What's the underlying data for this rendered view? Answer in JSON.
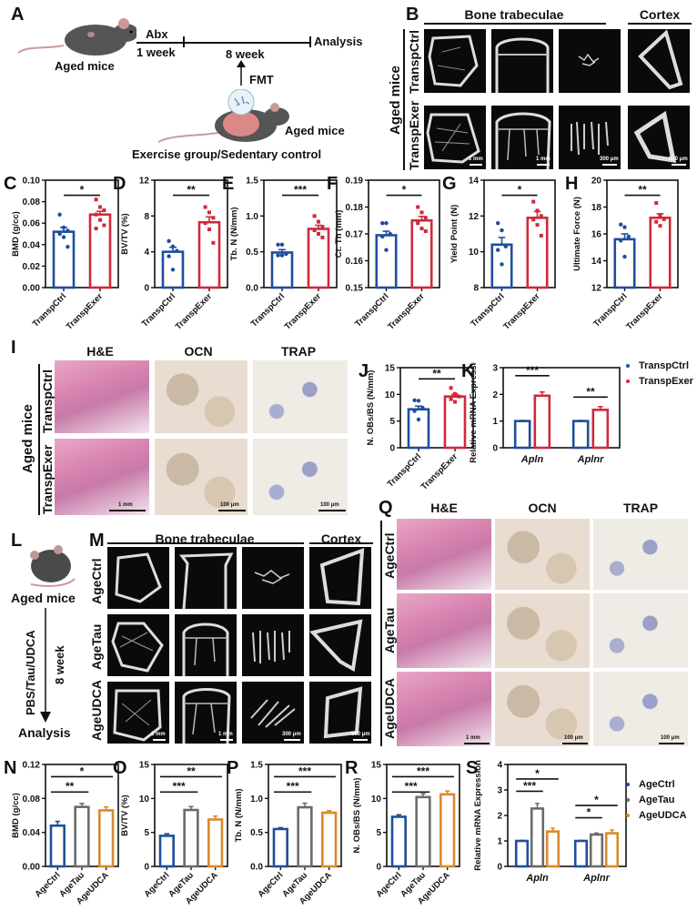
{
  "panels": {
    "A": {
      "label": "A",
      "mouse1_label": "Aged mice",
      "step1_top": "Abx",
      "step1_bottom": "1 week",
      "step2_bottom": "8 week",
      "end_label": "Analysis",
      "arrow_label": "FMT",
      "mouse2_label": "Aged mice",
      "donor_label": "Exercise group/Sedentary control"
    },
    "B": {
      "label": "B",
      "header_trab": "Bone trabeculae",
      "header_cortex": "Cortex",
      "group_label": "Aged mice",
      "rows": [
        "TranspCtrl",
        "TranspExer"
      ],
      "scale_bars": [
        "1 mm",
        "1 mm",
        "300 μm",
        "500 μm"
      ]
    },
    "I": {
      "label": "I",
      "columns": [
        "H&E",
        "OCN",
        "TRAP"
      ],
      "group_label": "Aged mice",
      "rows": [
        "TranspCtrl",
        "TranspExer"
      ],
      "scale_bars": [
        "1 mm",
        "100 μm",
        "100 μm"
      ]
    },
    "L": {
      "label": "L",
      "top_label": "Aged mice",
      "arrow_left": "PBS/Tau/UDCA",
      "arrow_right": "8 week",
      "bottom_label": "Analysis"
    },
    "M": {
      "label": "M",
      "header_trab": "Bone trabeculae",
      "header_cortex": "Cortex",
      "rows": [
        "AgeCtrl",
        "AgeTau",
        "AgeUDCA"
      ],
      "scale_bars": [
        "1 mm",
        "1 mm",
        "300 μm",
        "500 μm"
      ]
    },
    "Q": {
      "label": "Q",
      "columns": [
        "H&E",
        "OCN",
        "TRAP"
      ],
      "rows": [
        "AgeCtrl",
        "AgeTau",
        "AgeUDCA"
      ],
      "scale_bars": [
        "1 mm",
        "100 μm",
        "100 μm"
      ]
    }
  },
  "legends": {
    "K": [
      {
        "label": "TranspCtrl",
        "color": "#1f4e9c"
      },
      {
        "label": "TranspExer",
        "color": "#d0293a"
      }
    ],
    "S": [
      {
        "label": "AgeCtrl",
        "color": "#1f4e9c"
      },
      {
        "label": "AgeTau",
        "color": "#666666"
      },
      {
        "label": "AgeUDCA",
        "color": "#d98a2b"
      }
    ]
  },
  "colors": {
    "ctrl": "#1f4e9c",
    "exer": "#d0293a",
    "tau": "#6b6b6b",
    "udca": "#d98a2b"
  },
  "chart_data": [
    {
      "panel": "C",
      "type": "bar",
      "categories": [
        "TranspCtrl",
        "TranspExer"
      ],
      "values": [
        0.052,
        0.068
      ],
      "sem": [
        0.004,
        0.003
      ],
      "ylabel": "BMD (g/cc)",
      "ylim": [
        0,
        0.1
      ],
      "yticks": [
        "0.00",
        "0.02",
        "0.04",
        "0.06",
        "0.08",
        "0.10"
      ],
      "points": [
        [
          0.068,
          0.056,
          0.053,
          0.05,
          0.047,
          0.038
        ],
        [
          0.082,
          0.075,
          0.072,
          0.068,
          0.063,
          0.058,
          0.055
        ]
      ],
      "significance": [
        {
          "pair": [
            0,
            1
          ],
          "label": "*"
        }
      ]
    },
    {
      "panel": "D",
      "type": "bar",
      "categories": [
        "TranspCtrl",
        "TranspExer"
      ],
      "values": [
        4.0,
        7.3
      ],
      "sem": [
        0.5,
        0.6
      ],
      "ylabel": "BV/TV (%)",
      "ylim": [
        0,
        12
      ],
      "yticks": [
        "0",
        "4",
        "8",
        "12"
      ],
      "points": [
        [
          5.2,
          4.6,
          4.1,
          3.5,
          2.0
        ],
        [
          9.0,
          8.4,
          7.8,
          7.2,
          6.5,
          5.0
        ]
      ],
      "significance": [
        {
          "pair": [
            0,
            1
          ],
          "label": "**"
        }
      ]
    },
    {
      "panel": "E",
      "type": "bar",
      "categories": [
        "TranspCtrl",
        "TranspExer"
      ],
      "values": [
        0.49,
        0.82
      ],
      "sem": [
        0.04,
        0.05
      ],
      "ylabel": "Tb. N (N/mm)",
      "ylim": [
        0,
        1.5
      ],
      "yticks": [
        "0.0",
        "0.5",
        "1.0",
        "1.5"
      ],
      "points": [
        [
          0.6,
          0.6,
          0.47,
          0.45,
          0.45
        ],
        [
          1.0,
          0.92,
          0.85,
          0.8,
          0.75,
          0.7
        ]
      ],
      "significance": [
        {
          "pair": [
            0,
            1
          ],
          "label": "***"
        }
      ]
    },
    {
      "panel": "F",
      "type": "bar",
      "categories": [
        "TranspCtrl",
        "TranspExer"
      ],
      "values": [
        0.1695,
        0.175
      ],
      "sem": [
        0.0015,
        0.0015
      ],
      "ylabel": "Ct. Th (mm)",
      "ylim": [
        0.15,
        0.19
      ],
      "yticks": [
        "0.15",
        "0.16",
        "0.17",
        "0.18",
        "0.19"
      ],
      "points": [
        [
          0.174,
          0.174,
          0.17,
          0.169,
          0.164
        ],
        [
          0.18,
          0.178,
          0.176,
          0.174,
          0.172,
          0.171
        ]
      ],
      "significance": [
        {
          "pair": [
            0,
            1
          ],
          "label": "*"
        }
      ]
    },
    {
      "panel": "G",
      "type": "bar",
      "categories": [
        "TranspCtrl",
        "TranspExer"
      ],
      "values": [
        10.4,
        11.9
      ],
      "sem": [
        0.4,
        0.35
      ],
      "ylabel": "Yield Point (N)",
      "ylim": [
        8,
        14
      ],
      "yticks": [
        "8",
        "10",
        "12",
        "14"
      ],
      "points": [
        [
          11.6,
          11.2,
          10.3,
          10.1,
          9.3
        ],
        [
          12.8,
          12.3,
          12.0,
          11.8,
          11.5,
          10.9
        ]
      ],
      "significance": [
        {
          "pair": [
            0,
            1
          ],
          "label": "*"
        }
      ]
    },
    {
      "panel": "H",
      "type": "bar",
      "categories": [
        "TranspCtrl",
        "TranspExer"
      ],
      "values": [
        15.6,
        17.2
      ],
      "sem": [
        0.4,
        0.3
      ],
      "ylabel": "Ultimate Force (N)",
      "ylim": [
        12,
        20
      ],
      "yticks": [
        "12",
        "14",
        "16",
        "18",
        "20"
      ],
      "points": [
        [
          16.7,
          16.5,
          15.8,
          15.5,
          14.3
        ],
        [
          18.3,
          17.4,
          17.1,
          16.9,
          16.6
        ]
      ],
      "significance": [
        {
          "pair": [
            0,
            1
          ],
          "label": "**"
        }
      ]
    },
    {
      "panel": "J",
      "type": "bar",
      "categories": [
        "TranspCtrl",
        "TranspExer"
      ],
      "values": [
        7.2,
        9.6
      ],
      "sem": [
        0.6,
        0.4
      ],
      "ylabel": "N. OBs/BS (N/mm)",
      "ylim": [
        0,
        15
      ],
      "yticks": [
        "0",
        "5",
        "10",
        "15"
      ],
      "points": [
        [
          8.9,
          8.8,
          7.5,
          6.9,
          5.3
        ],
        [
          11.2,
          10.1,
          9.6,
          9.1,
          8.6
        ]
      ],
      "significance": [
        {
          "pair": [
            0,
            1
          ],
          "label": "**"
        }
      ]
    },
    {
      "panel": "K",
      "type": "bar",
      "categories": [
        "Apln",
        "Aplnr"
      ],
      "series": [
        {
          "name": "TranspCtrl",
          "values": [
            1.0,
            1.0
          ],
          "sem": [
            0.02,
            0.02
          ]
        },
        {
          "name": "TranspExer",
          "values": [
            1.95,
            1.42
          ],
          "sem": [
            0.14,
            0.12
          ]
        }
      ],
      "ylabel": "Relative mRNA Expression",
      "ylim": [
        0,
        3
      ],
      "yticks": [
        "0",
        "1",
        "2",
        "3"
      ],
      "significance": [
        {
          "category": "Apln",
          "label": "***"
        },
        {
          "category": "Aplnr",
          "label": "**"
        }
      ]
    },
    {
      "panel": "N",
      "type": "bar",
      "categories": [
        "AgeCtrl",
        "AgeTau",
        "AgeUDCA"
      ],
      "values": [
        0.048,
        0.07,
        0.066
      ],
      "sem": [
        0.005,
        0.004,
        0.004
      ],
      "ylabel": "BMD (g/cc)",
      "ylim": [
        0,
        0.12
      ],
      "yticks": [
        "0.00",
        "0.04",
        "0.08",
        "0.12"
      ],
      "significance": [
        {
          "pair": [
            0,
            1
          ],
          "label": "**"
        },
        {
          "pair": [
            0,
            2
          ],
          "label": "*"
        }
      ]
    },
    {
      "panel": "O",
      "type": "bar",
      "categories": [
        "AgeCtrl",
        "AgeTau",
        "AgeUDCA"
      ],
      "values": [
        4.5,
        8.3,
        6.9
      ],
      "sem": [
        0.3,
        0.5,
        0.5
      ],
      "ylabel": "BV/TV (%)",
      "ylim": [
        0,
        15
      ],
      "yticks": [
        "0",
        "5",
        "10",
        "15"
      ],
      "significance": [
        {
          "pair": [
            0,
            1
          ],
          "label": "***"
        },
        {
          "pair": [
            0,
            2
          ],
          "label": "**"
        }
      ]
    },
    {
      "panel": "P",
      "type": "bar",
      "categories": [
        "AgeCtrl",
        "AgeTau",
        "AgeUDCA"
      ],
      "values": [
        0.55,
        0.87,
        0.79
      ],
      "sem": [
        0.02,
        0.06,
        0.03
      ],
      "ylabel": "Tb. N (N/mm)",
      "ylim": [
        0,
        1.5
      ],
      "yticks": [
        "0.0",
        "0.5",
        "1.0",
        "1.5"
      ],
      "significance": [
        {
          "pair": [
            0,
            1
          ],
          "label": "***"
        },
        {
          "pair": [
            0,
            2
          ],
          "label": "***"
        }
      ]
    },
    {
      "panel": "R",
      "type": "bar",
      "categories": [
        "AgeCtrl",
        "AgeTau",
        "AgeUDCA"
      ],
      "values": [
        7.3,
        10.2,
        10.6
      ],
      "sem": [
        0.3,
        0.5,
        0.5
      ],
      "ylabel": "N. OBs/BS (N/mm)",
      "ylim": [
        0,
        15
      ],
      "yticks": [
        "0",
        "5",
        "10",
        "15"
      ],
      "significance": [
        {
          "pair": [
            0,
            1
          ],
          "label": "***"
        },
        {
          "pair": [
            0,
            2
          ],
          "label": "***"
        }
      ]
    },
    {
      "panel": "S",
      "type": "bar",
      "categories": [
        "Apln",
        "Aplnr"
      ],
      "series": [
        {
          "name": "AgeCtrl",
          "values": [
            1.0,
            1.0
          ],
          "sem": [
            0.02,
            0.02
          ]
        },
        {
          "name": "AgeTau",
          "values": [
            2.27,
            1.25
          ],
          "sem": [
            0.2,
            0.06
          ]
        },
        {
          "name": "AgeUDCA",
          "values": [
            1.37,
            1.3
          ],
          "sem": [
            0.13,
            0.13
          ]
        }
      ],
      "ylabel": "Relative mRNA Expression",
      "ylim": [
        0,
        4
      ],
      "yticks": [
        "0",
        "1",
        "2",
        "3",
        "4"
      ],
      "significance": [
        {
          "category": "Apln",
          "pair": [
            0,
            1
          ],
          "label": "***"
        },
        {
          "category": "Apln",
          "pair": [
            0,
            2
          ],
          "label": "*"
        },
        {
          "category": "Aplnr",
          "pair": [
            0,
            1
          ],
          "label": "*"
        },
        {
          "category": "Aplnr",
          "pair": [
            0,
            2
          ],
          "label": "*"
        }
      ]
    }
  ]
}
